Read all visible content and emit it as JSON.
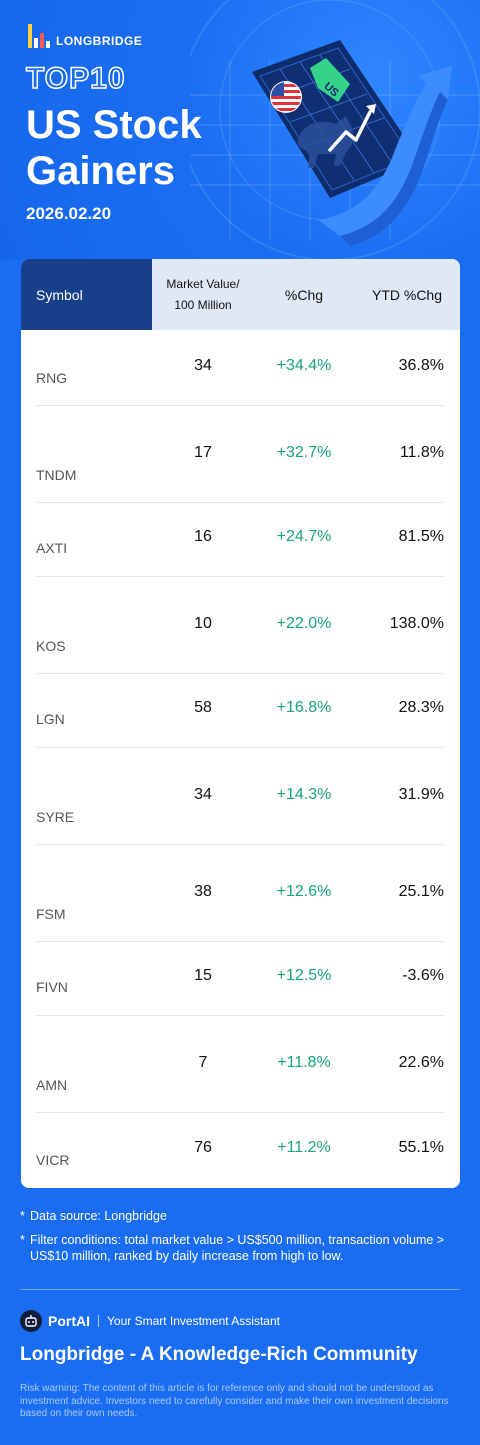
{
  "brand": {
    "name": "LONGBRIDGE"
  },
  "hero": {
    "top10": "TOP10",
    "title_line1": "US Stock",
    "title_line2": "Gainers",
    "date": "2026.02.20",
    "tag_text": "US"
  },
  "table": {
    "columns": {
      "symbol": "Symbol",
      "market_value_line1": "Market Value/",
      "market_value_line2": "100 Million",
      "chg": "%Chg",
      "ytd": "YTD %Chg"
    },
    "rows": [
      {
        "symbol": "RNG",
        "market_value": "34",
        "chg": "+34.4%",
        "ytd": "36.8%"
      },
      {
        "symbol": "TNDM",
        "market_value": "17",
        "chg": "+32.7%",
        "ytd": "11.8%"
      },
      {
        "symbol": "AXTI",
        "market_value": "16",
        "chg": "+24.7%",
        "ytd": "81.5%"
      },
      {
        "symbol": "KOS",
        "market_value": "10",
        "chg": "+22.0%",
        "ytd": "138.0%"
      },
      {
        "symbol": "LGN",
        "market_value": "58",
        "chg": "+16.8%",
        "ytd": "28.3%"
      },
      {
        "symbol": "SYRE",
        "market_value": "34",
        "chg": "+14.3%",
        "ytd": "31.9%"
      },
      {
        "symbol": "FSM",
        "market_value": "38",
        "chg": "+12.6%",
        "ytd": "25.1%"
      },
      {
        "symbol": "FIVN",
        "market_value": "15",
        "chg": "+12.5%",
        "ytd": "-3.6%"
      },
      {
        "symbol": "AMN",
        "market_value": "7",
        "chg": "+11.8%",
        "ytd": "22.6%"
      },
      {
        "symbol": "VICR",
        "market_value": "76",
        "chg": "+11.2%",
        "ytd": "55.1%"
      }
    ]
  },
  "notes": {
    "source": "Data source: Longbridge",
    "filter": "Filter conditions: total market value > US$500 million, transaction volume > US$10 million, ranked by daily increase from high to low."
  },
  "footer": {
    "portai_name": "PortAI",
    "portai_tagline": "Your Smart Investment Assistant",
    "community": "Longbridge - A Knowledge-Rich Community",
    "risk_warning": "Risk warning: The content of this article is for reference only and should not be understood as investment advice. Investors need to carefully consider and make their own investment decisions based on their own needs."
  },
  "colors": {
    "background": "#1a6cf0",
    "header_dark": "#173f8a",
    "header_light": "#e1e8f5",
    "positive": "#17a37e"
  },
  "icons": [
    "longbridge-logo-icon",
    "us-flag-icon",
    "bull-icon",
    "up-arrow-icon",
    "portai-icon"
  ]
}
